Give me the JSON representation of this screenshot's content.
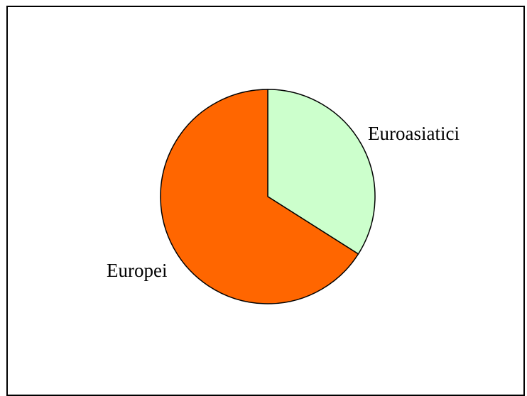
{
  "chart_data": {
    "type": "pie",
    "title": "",
    "labels": [
      "Euroasiatici",
      "Europei"
    ],
    "values": [
      34,
      66
    ],
    "colors": [
      "#ccffcc",
      "#ff6600"
    ],
    "start_angle_deg": 0,
    "direction": "clockwise",
    "legend": "none",
    "labels_outside_slices": true
  }
}
